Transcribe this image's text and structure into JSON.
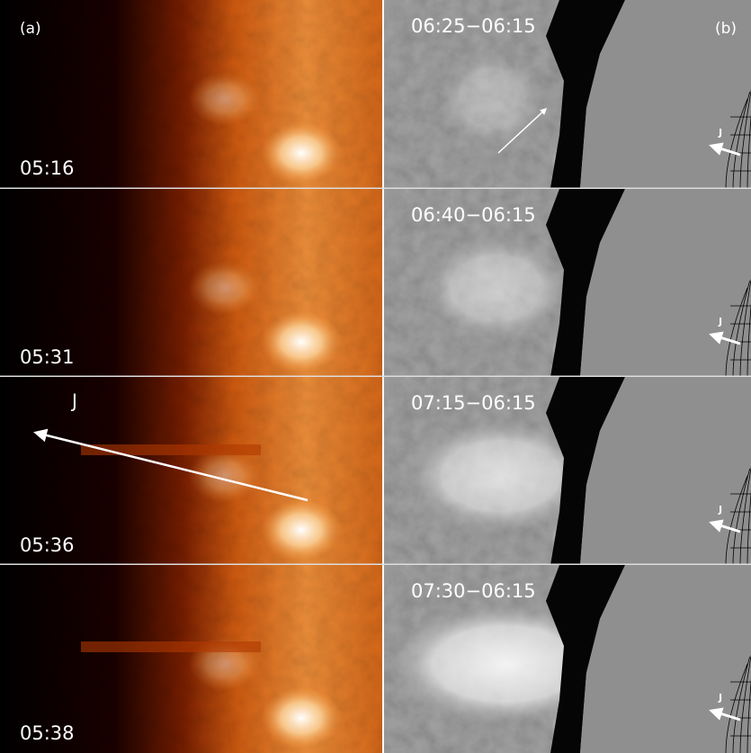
{
  "panel_a": {
    "label": "(a)",
    "jet_label": "J",
    "frames": [
      {
        "time": "05:16"
      },
      {
        "time": "05:31"
      },
      {
        "time": "05:36"
      },
      {
        "time": "05:38"
      }
    ]
  },
  "panel_b": {
    "label": "(b)",
    "frames": [
      {
        "time": "06:25−06:15",
        "jet_label": "J"
      },
      {
        "time": "06:40−06:15",
        "jet_label": "J"
      },
      {
        "time": "07:15−06:15",
        "jet_label": "J"
      },
      {
        "time": "07:30−06:15",
        "jet_label": "J"
      }
    ]
  }
}
